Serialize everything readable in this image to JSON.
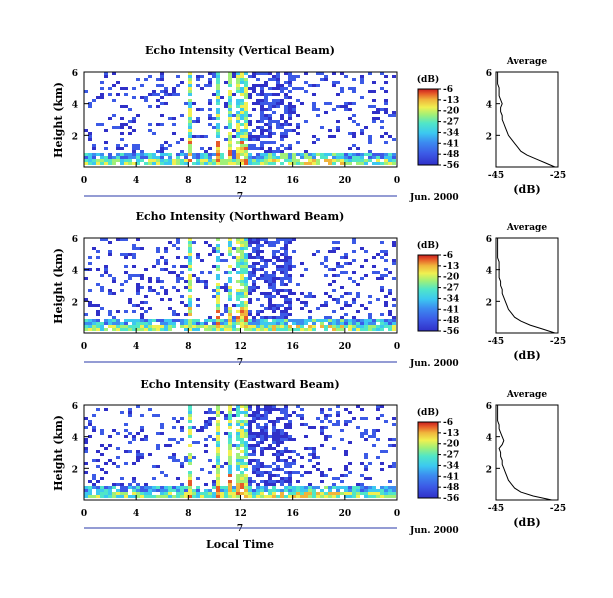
{
  "chart_data": [
    {
      "type": "heatmap",
      "title": "Echo Intensity (Vertical Beam)",
      "ylabel": "Height (km)",
      "x_ticks": [
        "0",
        "4",
        "8",
        "12",
        "16",
        "20",
        "0"
      ],
      "y_ticks": [
        "6",
        "4",
        "2"
      ],
      "xlim": [
        0,
        24
      ],
      "ylim": [
        0,
        6
      ],
      "date_marker": "7",
      "date_label": "Jun. 2000",
      "colorbar": {
        "unit": "(dB)",
        "ticks": [
          "-6",
          "-13",
          "-20",
          "-27",
          "-34",
          "-41",
          "-48",
          "-56"
        ]
      },
      "profile": {
        "title": "Average",
        "xlabel": "(dB)",
        "x_ticks": [
          "-45",
          "-25"
        ],
        "y_ticks": [
          "6",
          "4",
          "2"
        ],
        "xlim": [
          -45,
          -25
        ],
        "ylim": [
          0,
          6
        ],
        "heights": [
          0.0,
          0.25,
          0.5,
          0.75,
          1.0,
          1.25,
          1.5,
          1.75,
          2.0,
          2.25,
          2.5,
          2.75,
          3.0,
          3.25,
          3.5,
          3.75,
          4.0,
          4.25,
          4.5,
          4.75,
          5.0,
          5.25,
          5.5,
          5.75,
          6.0
        ],
        "values": [
          -26,
          -29,
          -32,
          -35,
          -37,
          -38,
          -39,
          -40,
          -41,
          -41.5,
          -42,
          -42.5,
          -43,
          -43,
          -43.5,
          -43.5,
          -43,
          -43.5,
          -44,
          -44,
          -44,
          -44.5,
          -44.5,
          -44.5,
          -44.5
        ]
      }
    },
    {
      "type": "heatmap",
      "title": "Echo Intensity (Northward Beam)",
      "ylabel": "Height (km)",
      "x_ticks": [
        "0",
        "4",
        "8",
        "12",
        "16",
        "20",
        "0"
      ],
      "y_ticks": [
        "6",
        "4",
        "2"
      ],
      "xlim": [
        0,
        24
      ],
      "ylim": [
        0,
        6
      ],
      "date_marker": "7",
      "date_label": "Jun. 2000",
      "colorbar": {
        "unit": "(dB)",
        "ticks": [
          "-6",
          "-13",
          "-20",
          "-27",
          "-34",
          "-41",
          "-48",
          "-56"
        ]
      },
      "profile": {
        "title": "Average",
        "xlabel": "(dB)",
        "x_ticks": [
          "-45",
          "-25"
        ],
        "y_ticks": [
          "6",
          "4",
          "2"
        ],
        "xlim": [
          -45,
          -25
        ],
        "ylim": [
          0,
          6
        ],
        "heights": [
          0.0,
          0.25,
          0.5,
          0.75,
          1.0,
          1.25,
          1.5,
          1.75,
          2.0,
          2.25,
          2.5,
          2.75,
          3.0,
          3.25,
          3.5,
          3.75,
          4.0,
          4.25,
          4.5,
          4.75,
          5.0,
          5.25,
          5.5,
          5.75,
          6.0
        ],
        "values": [
          -26,
          -30,
          -34,
          -37,
          -39,
          -40,
          -41,
          -41.5,
          -42,
          -42.5,
          -43,
          -43,
          -43.5,
          -43.5,
          -44,
          -44,
          -44,
          -44,
          -44,
          -44.5,
          -44.5,
          -44.5,
          -44.5,
          -44.5,
          -44.5
        ]
      }
    },
    {
      "type": "heatmap",
      "title": "Echo Intensity (Eastward Beam)",
      "ylabel": "Height (km)",
      "x_ticks": [
        "0",
        "4",
        "8",
        "12",
        "16",
        "20",
        "0"
      ],
      "y_ticks": [
        "6",
        "4",
        "2"
      ],
      "xlim": [
        0,
        24
      ],
      "ylim": [
        0,
        6
      ],
      "date_marker": "7",
      "date_label": "Jun. 2000",
      "colorbar": {
        "unit": "(dB)",
        "ticks": [
          "-6",
          "-13",
          "-20",
          "-27",
          "-34",
          "-41",
          "-48",
          "-56"
        ]
      },
      "profile": {
        "title": "Average",
        "xlabel": "(dB)",
        "x_ticks": [
          "-45",
          "-25"
        ],
        "y_ticks": [
          "6",
          "4",
          "2"
        ],
        "xlim": [
          -45,
          -25
        ],
        "ylim": [
          0,
          6
        ],
        "heights": [
          0.0,
          0.25,
          0.5,
          0.75,
          1.0,
          1.25,
          1.5,
          1.75,
          2.0,
          2.25,
          2.5,
          2.75,
          3.0,
          3.25,
          3.5,
          3.75,
          4.0,
          4.25,
          4.5,
          4.75,
          5.0,
          5.25,
          5.5,
          5.75,
          6.0
        ],
        "values": [
          -27,
          -33,
          -37,
          -39,
          -40,
          -41,
          -41.5,
          -42,
          -42.5,
          -43,
          -43,
          -43.5,
          -43.5,
          -44,
          -43,
          -42.5,
          -43,
          -43.5,
          -44,
          -44,
          -44.5,
          -44.5,
          -44.5,
          -44.5,
          -44.5
        ]
      }
    }
  ],
  "shared": {
    "xlabel": "Local Time"
  },
  "colors": {
    "scale": [
      "#3030c8",
      "#3c5ae6",
      "#3c8cf0",
      "#3cc8f0",
      "#50e6c8",
      "#a0f078",
      "#f0f050",
      "#f0b43c",
      "#e65a28",
      "#c81e1e"
    ],
    "axis": "#000000",
    "date_line": "#2a3aa8"
  }
}
